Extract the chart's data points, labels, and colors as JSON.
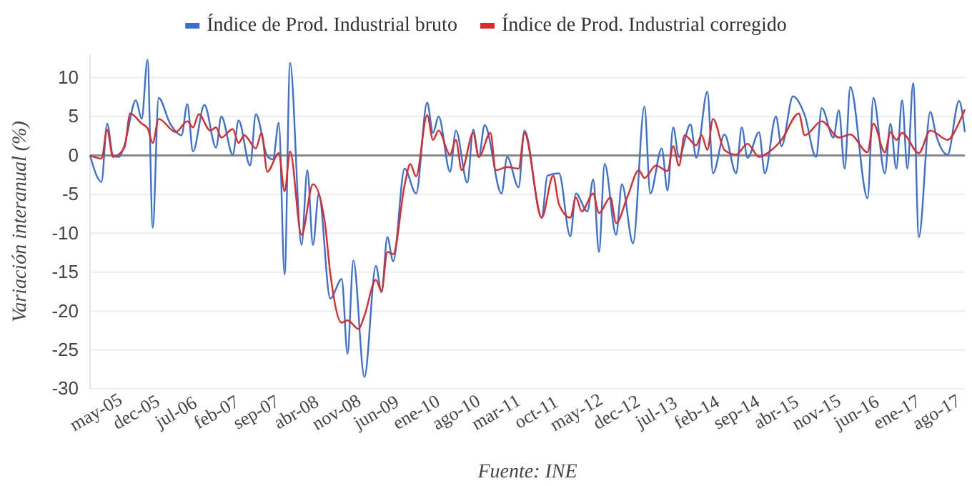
{
  "chart_data": {
    "type": "line",
    "ylabel": "Variación interanual (%)",
    "annotations": [
      "Fuente: INE"
    ],
    "xlim": [
      "2005-04",
      "2018-01"
    ],
    "xticks": [
      {
        "value": "2005-05",
        "label": "may-05"
      },
      {
        "value": "2005-12",
        "label": "dec-05"
      },
      {
        "value": "2006-07",
        "label": "jul-06"
      },
      {
        "value": "2007-02",
        "label": "feb-07"
      },
      {
        "value": "2007-09",
        "label": "sep-07"
      },
      {
        "value": "2008-04",
        "label": "abr-08"
      },
      {
        "value": "2008-11",
        "label": "nov-08"
      },
      {
        "value": "2009-06",
        "label": "jun-09"
      },
      {
        "value": "2010-01",
        "label": "ene-10"
      },
      {
        "value": "2010-08",
        "label": "ago-10"
      },
      {
        "value": "2011-03",
        "label": "mar-11"
      },
      {
        "value": "2011-10",
        "label": "oct-11"
      },
      {
        "value": "2012-05",
        "label": "may-12"
      },
      {
        "value": "2012-12",
        "label": "dec-12"
      },
      {
        "value": "2013-07",
        "label": "jul-13"
      },
      {
        "value": "2014-02",
        "label": "feb-14"
      },
      {
        "value": "2014-09",
        "label": "sep-14"
      },
      {
        "value": "2015-04",
        "label": "abr-15"
      },
      {
        "value": "2015-11",
        "label": "nov-15"
      },
      {
        "value": "2016-06",
        "label": "jun-16"
      },
      {
        "value": "2017-01",
        "label": "ene-17"
      },
      {
        "value": "2017-08",
        "label": "ago-17"
      }
    ],
    "ylim": [
      -30,
      13
    ],
    "yticks": [
      -30,
      -25,
      -20,
      -15,
      -10,
      -5,
      0,
      5,
      10
    ],
    "grid": "y",
    "legend": "top",
    "ref_lines": [
      {
        "axis": "y",
        "value": 0,
        "color": "#888888"
      }
    ],
    "series": [
      {
        "name": "Índice de Prod. Industrial bruto",
        "color": "#3b6fd6",
        "x": [
          "2005-04",
          "2005-06",
          "2005-07",
          "2005-08",
          "2005-09",
          "2005-10",
          "2005-12",
          "2006-01",
          "2006-02",
          "2006-03",
          "2006-04",
          "2006-06",
          "2006-08",
          "2006-09",
          "2006-10",
          "2006-12",
          "2007-02",
          "2007-03",
          "2007-05",
          "2007-06",
          "2007-08",
          "2007-09",
          "2007-11",
          "2007-12",
          "2008-01",
          "2008-02",
          "2008-03",
          "2008-05",
          "2008-06",
          "2008-07",
          "2008-08",
          "2008-10",
          "2008-12",
          "2009-01",
          "2009-02",
          "2009-04",
          "2009-06",
          "2009-07",
          "2009-08",
          "2009-09",
          "2009-11",
          "2010-01",
          "2010-03",
          "2010-04",
          "2010-05",
          "2010-07",
          "2010-08",
          "2010-10",
          "2010-11",
          "2010-12",
          "2011-01",
          "2011-04",
          "2011-05",
          "2011-07",
          "2011-08",
          "2011-11",
          "2011-12",
          "2012-02",
          "2012-04",
          "2012-05",
          "2012-07",
          "2012-08",
          "2012-09",
          "2012-10",
          "2012-12",
          "2013-01",
          "2013-03",
          "2013-05",
          "2013-06",
          "2013-08",
          "2013-09",
          "2013-10",
          "2013-11",
          "2014-01",
          "2014-02",
          "2014-04",
          "2014-05",
          "2014-07",
          "2014-09",
          "2014-10",
          "2014-11",
          "2015-01",
          "2015-02",
          "2015-04",
          "2015-05",
          "2015-07",
          "2015-09",
          "2015-11",
          "2015-12",
          "2016-02",
          "2016-03",
          "2016-04",
          "2016-05",
          "2016-08",
          "2016-09",
          "2016-11",
          "2016-12",
          "2017-01",
          "2017-02",
          "2017-03",
          "2017-04",
          "2017-05",
          "2017-07",
          "2017-08",
          "2017-10",
          "2017-12",
          "2018-01"
        ],
        "values": [
          0,
          -3.4,
          4.1,
          0.0,
          -0.2,
          1.3,
          7.1,
          4.7,
          12.3,
          -9.3,
          7.4,
          4.1,
          2.6,
          6.6,
          0.5,
          6.5,
          1.0,
          5.0,
          0.1,
          4.5,
          -1.3,
          5.3,
          -0.1,
          -0.5,
          4.2,
          -15.3,
          11.9,
          -11.5,
          -1.9,
          -11.5,
          -4.9,
          -18.4,
          -15.9,
          -25.5,
          -13.5,
          -28.5,
          -14.2,
          -17.6,
          -10.5,
          -13.6,
          -1.7,
          -4.9,
          6.8,
          2.9,
          5.0,
          -2.1,
          3.2,
          -3.5,
          3.3,
          -0.2,
          3.9,
          -4.9,
          -0.2,
          -4.1,
          3.2,
          -8.0,
          -2.6,
          -2.3,
          -10.4,
          -4.9,
          -7.2,
          -3.1,
          -12.4,
          -1.1,
          -10.2,
          -3.7,
          -11.3,
          6.3,
          -4.9,
          0.9,
          -4.5,
          3.6,
          -0.2,
          4.0,
          -0.3,
          8.2,
          -2.3,
          2.7,
          -2.3,
          3.6,
          -0.3,
          3.0,
          -2.3,
          5.0,
          1.2,
          7.6,
          5.2,
          -0.2,
          6.1,
          2.3,
          5.8,
          -1.7,
          8.8,
          -5.5,
          7.4,
          -2.3,
          4.1,
          -1.7,
          7.1,
          -1.7,
          9.3,
          -10.5,
          5.6,
          2.6,
          0.1,
          7.0,
          3.0
        ]
      },
      {
        "name": "Índice de Prod. Industrial corregido",
        "color": "#e02828",
        "x": [
          "2005-04",
          "2005-06",
          "2005-07",
          "2005-08",
          "2005-10",
          "2005-11",
          "2006-01",
          "2006-02",
          "2006-03",
          "2006-04",
          "2006-07",
          "2006-09",
          "2006-10",
          "2006-11",
          "2007-01",
          "2007-02",
          "2007-03",
          "2007-05",
          "2007-06",
          "2007-07",
          "2007-09",
          "2007-10",
          "2007-11",
          "2008-01",
          "2008-02",
          "2008-03",
          "2008-05",
          "2008-07",
          "2008-09",
          "2008-10",
          "2008-12",
          "2009-01",
          "2009-03",
          "2009-04",
          "2009-06",
          "2009-07",
          "2009-08",
          "2009-09",
          "2009-11",
          "2009-12",
          "2010-01",
          "2010-03",
          "2010-04",
          "2010-05",
          "2010-07",
          "2010-08",
          "2010-09",
          "2010-11",
          "2010-12",
          "2011-02",
          "2011-03",
          "2011-05",
          "2011-07",
          "2011-08",
          "2011-11",
          "2012-01",
          "2012-02",
          "2012-04",
          "2012-05",
          "2012-06",
          "2012-08",
          "2012-09",
          "2012-11",
          "2012-12",
          "2013-02",
          "2013-04",
          "2013-05",
          "2013-07",
          "2013-09",
          "2013-10",
          "2013-11",
          "2013-12",
          "2014-02",
          "2014-03",
          "2014-04",
          "2014-05",
          "2014-07",
          "2014-09",
          "2014-11",
          "2015-01",
          "2015-02",
          "2015-05",
          "2015-08",
          "2015-09",
          "2015-12",
          "2016-03",
          "2016-05",
          "2016-08",
          "2016-09",
          "2016-11",
          "2016-12",
          "2017-01",
          "2017-02",
          "2017-05",
          "2017-07",
          "2017-10",
          "2017-12",
          "2018-01"
        ],
        "values": [
          0,
          -0.4,
          3.3,
          -0.2,
          1.0,
          5.4,
          4.1,
          3.5,
          1.6,
          4.7,
          3.0,
          4.4,
          3.6,
          5.3,
          3.2,
          3.6,
          2.3,
          3.4,
          1.6,
          2.6,
          0.9,
          2.9,
          -2.1,
          0.3,
          -4.6,
          0.5,
          -10.2,
          -3.7,
          -8.4,
          -15.1,
          -21.5,
          -21.2,
          -22.3,
          -20.6,
          -16.0,
          -17.4,
          -12.4,
          -12.7,
          -3.8,
          -1.1,
          -2.7,
          5.2,
          2.0,
          3.2,
          0.1,
          2.0,
          -1.9,
          2.9,
          -0.2,
          2.9,
          -1.9,
          -1.5,
          -1.7,
          2.9,
          -8.0,
          -2.6,
          -6.3,
          -8.0,
          -5.4,
          -7.2,
          -4.9,
          -7.4,
          -5.4,
          -8.7,
          -5.2,
          -1.9,
          -2.9,
          -1.3,
          -2.0,
          1.2,
          -1.3,
          2.6,
          1.3,
          2.6,
          0.7,
          4.7,
          0.7,
          0.1,
          1.5,
          -0.2,
          0.1,
          2.0,
          5.4,
          2.6,
          4.4,
          2.3,
          2.7,
          0.4,
          4.1,
          0.4,
          3.0,
          2.0,
          2.9,
          0.3,
          3.2,
          2.0,
          4.2,
          5.9
        ]
      }
    ]
  }
}
